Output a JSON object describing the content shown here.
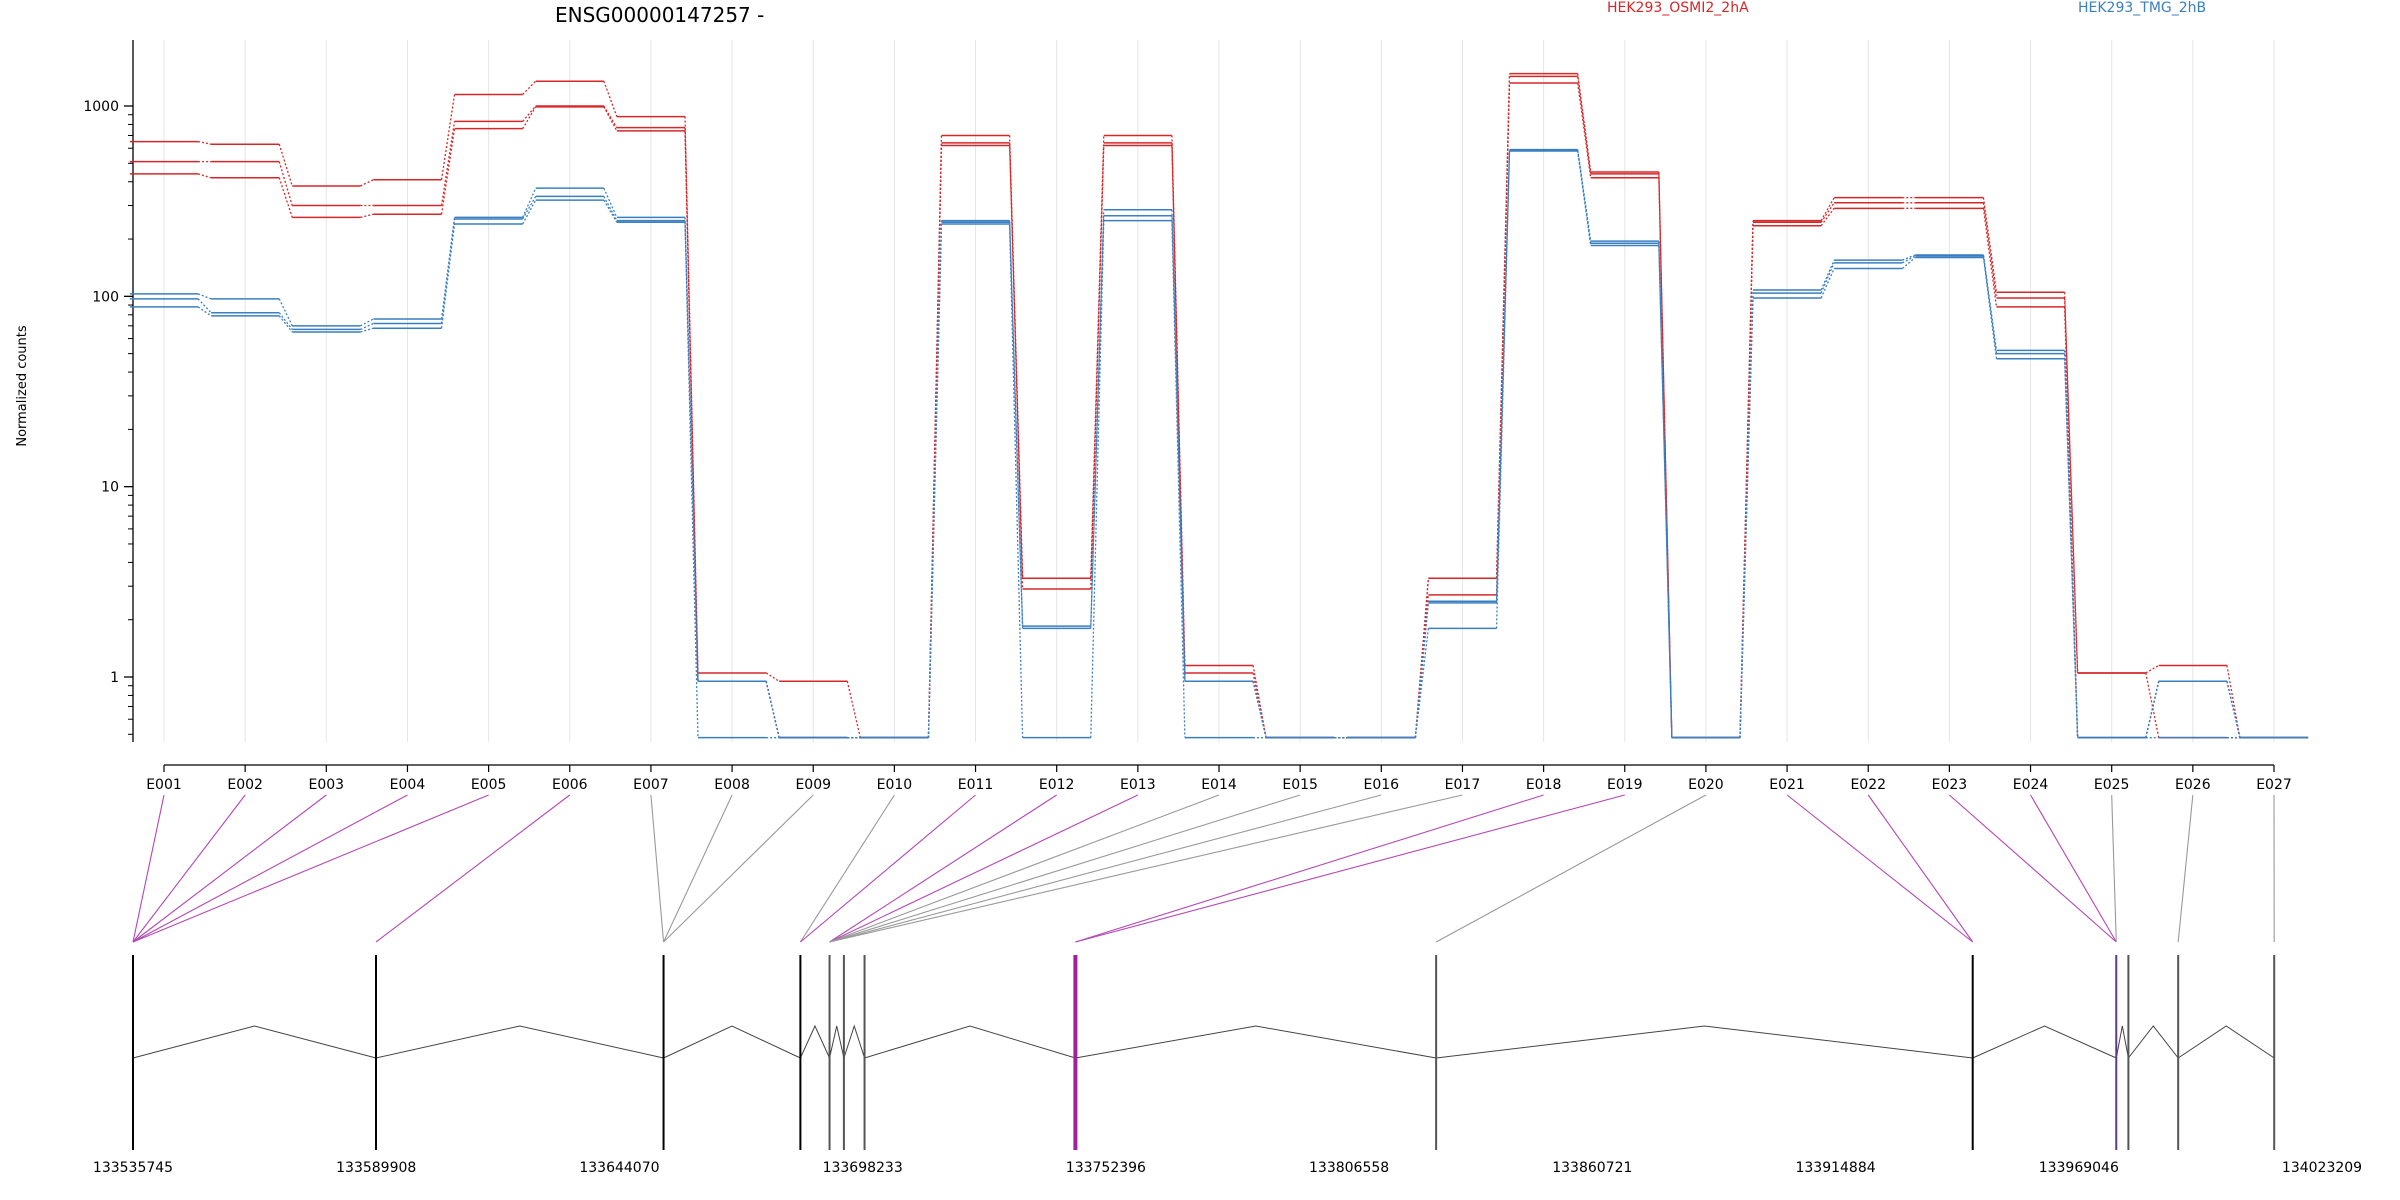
{
  "chart_data": {
    "type": "line",
    "title": "ENSG00000147257 -",
    "ylabel": "Normalized counts",
    "yscale": "log",
    "yticks": [
      "1",
      "10",
      "100",
      "1000"
    ],
    "ylim": [
      0.5,
      2000
    ],
    "legend_position": "top-right",
    "grid": "vertical",
    "categories": [
      "E001",
      "E002",
      "E003",
      "E004",
      "E005",
      "E006",
      "E007",
      "E008",
      "E009",
      "E010",
      "E011",
      "E012",
      "E013",
      "E014",
      "E015",
      "E016",
      "E017",
      "E018",
      "E019",
      "E020",
      "E021",
      "E022",
      "E023",
      "E024",
      "E025",
      "E026",
      "E027"
    ],
    "series": [
      {
        "name": "HEK293_OSMI2_2hA",
        "group": "osmi",
        "color": "#d62728",
        "values": [
          650,
          630,
          380,
          410,
          1150,
          1350,
          880,
          1.05,
          0.95,
          0.48,
          700,
          3.3,
          700,
          1.15,
          0.48,
          0.48,
          3.3,
          1480,
          450,
          0.48,
          250,
          330,
          330,
          105,
          1.05,
          1.15,
          0.48
        ]
      },
      {
        "group": "osmi",
        "color": "#d62728",
        "values": [
          510,
          510,
          300,
          300,
          830,
          1000,
          770,
          0.95,
          0.48,
          0.48,
          640,
          3.3,
          640,
          1.05,
          0.48,
          0.48,
          3.3,
          1430,
          440,
          0.48,
          245,
          310,
          310,
          98,
          1.05,
          0.48,
          0.48
        ]
      },
      {
        "group": "osmi",
        "color": "#d62728",
        "values": [
          440,
          420,
          260,
          270,
          760,
          990,
          740,
          0.95,
          0.48,
          0.48,
          620,
          2.9,
          620,
          0.95,
          0.48,
          0.48,
          2.7,
          1320,
          420,
          0.48,
          235,
          290,
          290,
          88,
          0.48,
          0.95,
          0.48
        ]
      },
      {
        "name": "HEK293_TMG_2hB",
        "group": "tmg",
        "color": "#3a7fc1",
        "values": [
          103,
          97,
          70,
          76,
          260,
          370,
          260,
          0.95,
          0.48,
          0.48,
          250,
          1.85,
          285,
          0.95,
          0.48,
          0.48,
          2.5,
          590,
          195,
          0.48,
          108,
          155,
          165,
          52,
          0.48,
          0.95,
          0.48
        ]
      },
      {
        "group": "tmg",
        "color": "#3a7fc1",
        "values": [
          97,
          82,
          67,
          72,
          255,
          335,
          250,
          0.95,
          0.48,
          0.48,
          245,
          1.8,
          265,
          0.95,
          0.48,
          0.48,
          2.45,
          585,
          190,
          0.48,
          104,
          150,
          163,
          50,
          0.48,
          0.95,
          0.48
        ]
      },
      {
        "group": "tmg",
        "color": "#3a7fc1",
        "values": [
          88,
          79,
          65,
          68,
          240,
          320,
          245,
          0.48,
          0.48,
          0.48,
          240,
          0.48,
          250,
          0.48,
          0.48,
          0.48,
          1.8,
          580,
          185,
          0.48,
          98,
          140,
          160,
          47,
          0.48,
          0.48,
          0.48
        ]
      }
    ],
    "exon_map": {
      "coordinates": [
        "133535745",
        "133589908",
        "133644070",
        "133698233",
        "133752396",
        "133806558",
        "133860721",
        "133914884",
        "133969046",
        "134023209"
      ],
      "genomic_range": [
        133535745,
        134023209
      ],
      "exon_positions": [
        133535745,
        133589908,
        133654000,
        133684500,
        133691000,
        133694200,
        133698800,
        133745800,
        133826200,
        133945800,
        133977800,
        133980500,
        133991600,
        134013000
      ],
      "exon_colors": [
        "#000000",
        "#000000",
        "#000000",
        "#000000",
        "#555555",
        "#555555",
        "#555555",
        "#a020a0",
        "#555555",
        "#000000",
        "#5a3a8a",
        "#555555",
        "#555555",
        "#555555"
      ],
      "feature_links": [
        {
          "feature": "E001",
          "position": 133535745,
          "highlight": true
        },
        {
          "feature": "E002",
          "position": 133535745,
          "highlight": true
        },
        {
          "feature": "E003",
          "position": 133535745,
          "highlight": true
        },
        {
          "feature": "E004",
          "position": 133535745,
          "highlight": true
        },
        {
          "feature": "E005",
          "position": 133535745,
          "highlight": true
        },
        {
          "feature": "E006",
          "position": 133589908,
          "highlight": true
        },
        {
          "feature": "E007",
          "position": 133654000,
          "highlight": false
        },
        {
          "feature": "E008",
          "position": 133654000,
          "highlight": false
        },
        {
          "feature": "E009",
          "position": 133654000,
          "highlight": false
        },
        {
          "feature": "E010",
          "position": 133684500,
          "highlight": false
        },
        {
          "feature": "E011",
          "position": 133684500,
          "highlight": true
        },
        {
          "feature": "E012",
          "position": 133691000,
          "highlight": true
        },
        {
          "feature": "E013",
          "position": 133691000,
          "highlight": true
        },
        {
          "feature": "E014",
          "position": 133691000,
          "highlight": false
        },
        {
          "feature": "E015",
          "position": 133691000,
          "highlight": false
        },
        {
          "feature": "E016",
          "position": 133691000,
          "highlight": false
        },
        {
          "feature": "E017",
          "position": 133691000,
          "highlight": false
        },
        {
          "feature": "E018",
          "position": 133745800,
          "highlight": true
        },
        {
          "feature": "E019",
          "position": 133745800,
          "highlight": true
        },
        {
          "feature": "E020",
          "position": 133826200,
          "highlight": false
        },
        {
          "feature": "E021",
          "position": 133945800,
          "highlight": true
        },
        {
          "feature": "E022",
          "position": 133945800,
          "highlight": true
        },
        {
          "feature": "E023",
          "position": 133977800,
          "highlight": true
        },
        {
          "feature": "E024",
          "position": 133977800,
          "highlight": true
        },
        {
          "feature": "E025",
          "position": 133977800,
          "highlight": false
        },
        {
          "feature": "E026",
          "position": 133991600,
          "highlight": false
        },
        {
          "feature": "E027",
          "position": 134013000,
          "highlight": false
        }
      ]
    }
  }
}
